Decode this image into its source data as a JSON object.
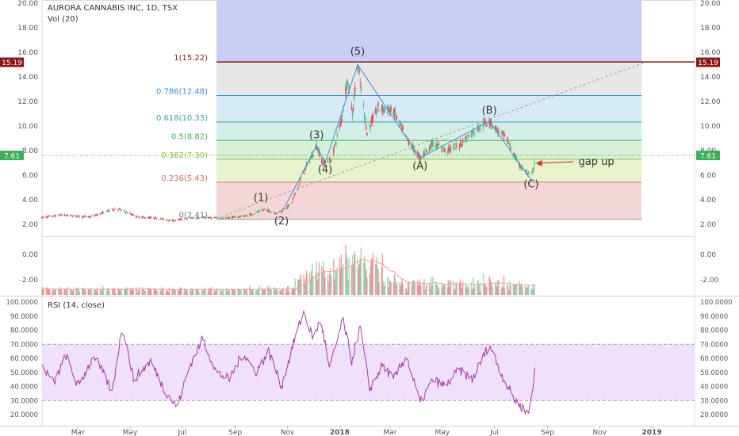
{
  "header": {
    "symbol_title": "AURORA CANNABIS INC, 1D, TSX",
    "volume_label": "Vol (20)",
    "rsi_label": "RSI (14, close)"
  },
  "colors": {
    "up": "#53b987",
    "down": "#eb4d5c",
    "rsi_line": "#a43ea6",
    "rsi_band": "#efe0fb",
    "fib_top_band": "#c9cdf3",
    "price_badge": "#3fae59",
    "high_badge": "#8c1515",
    "vol_ma": "#f1a593"
  },
  "chart_data": [
    {
      "type": "candlestick",
      "title": "AURORA CANNABIS INC, 1D, TSX",
      "y_ticks": [
        "20.00",
        "18.00",
        "16.00",
        "14.00",
        "12.00",
        "10.00",
        "8.00",
        "6.00",
        "4.00",
        "2.00"
      ],
      "ylim": [
        2,
        20
      ],
      "x_ticks": [
        "Mar",
        "May",
        "Jul",
        "Sep",
        "Nov",
        "2018",
        "Mar",
        "May",
        "Jul",
        "Sep",
        "Nov",
        "2019"
      ],
      "series": [
        {
          "name": "price",
          "anchors": [
            [
              "2017-01-18",
              2.55
            ],
            [
              "2017-02-10",
              2.75
            ],
            [
              "2017-03-15",
              2.6
            ],
            [
              "2017-04-15",
              3.3
            ],
            [
              "2017-05-10",
              2.6
            ],
            [
              "2017-06-01",
              2.5
            ],
            [
              "2017-06-20",
              2.3
            ],
            [
              "2017-07-15",
              2.55
            ],
            [
              "2017-08-20",
              2.5
            ],
            [
              "2017-09-15",
              2.7
            ],
            [
              "2017-10-05",
              3.2
            ],
            [
              "2017-10-20",
              2.9
            ],
            [
              "2017-11-05",
              3.6
            ],
            [
              "2017-11-20",
              6.2
            ],
            [
              "2017-12-05",
              8.4
            ],
            [
              "2017-12-12",
              7.0
            ],
            [
              "2017-12-22",
              7.2
            ],
            [
              "2018-01-03",
              10.5
            ],
            [
              "2018-01-10",
              13.9
            ],
            [
              "2018-01-16",
              11.0
            ],
            [
              "2018-01-22",
              15.0
            ],
            [
              "2018-02-02",
              9.5
            ],
            [
              "2018-02-15",
              11.5
            ],
            [
              "2018-03-05",
              11.2
            ],
            [
              "2018-03-20",
              9.0
            ],
            [
              "2018-04-05",
              7.4
            ],
            [
              "2018-04-20",
              8.6
            ],
            [
              "2018-05-05",
              8.0
            ],
            [
              "2018-05-20",
              8.4
            ],
            [
              "2018-06-10",
              9.8
            ],
            [
              "2018-06-25",
              10.4
            ],
            [
              "2018-07-05",
              9.6
            ],
            [
              "2018-07-15",
              9.0
            ],
            [
              "2018-07-28",
              7.0
            ],
            [
              "2018-08-05",
              6.4
            ],
            [
              "2018-08-13",
              5.9
            ],
            [
              "2018-08-17",
              6.9
            ],
            [
              "2018-08-18",
              7.61
            ]
          ]
        }
      ],
      "last_price": "7.61",
      "high_price": "15.19",
      "fib_levels": [
        {
          "ratio": "1",
          "value": 15.22,
          "label": "1(15.22)"
        },
        {
          "ratio": "0.786",
          "value": 12.48,
          "label": "0.786(12.48)"
        },
        {
          "ratio": "0.618",
          "value": 10.33,
          "label": "0.618(10.33)"
        },
        {
          "ratio": "0.5",
          "value": 8.82,
          "label": "0.5(8.82)"
        },
        {
          "ratio": "0.382",
          "value": 7.3,
          "label": "0.382(7.30)"
        },
        {
          "ratio": "0.236",
          "value": 5.43,
          "label": "0.236(5.43)"
        },
        {
          "ratio": "0",
          "value": 2.41,
          "label": "0(2.41)"
        }
      ],
      "wave_labels": [
        {
          "text": "(1)",
          "date": "2017-10-01",
          "price": 3.9
        },
        {
          "text": "(2)",
          "date": "2017-10-25",
          "price": 2.0
        },
        {
          "text": "(3)",
          "date": "2017-12-05",
          "price": 9.0
        },
        {
          "text": "(4)",
          "date": "2017-12-15",
          "price": 6.2
        },
        {
          "text": "(5)",
          "date": "2018-01-22",
          "price": 15.8
        },
        {
          "text": "(A)",
          "date": "2018-04-05",
          "price": 6.5
        },
        {
          "text": "(B)",
          "date": "2018-06-25",
          "price": 11.0
        },
        {
          "text": "(C)",
          "date": "2018-08-13",
          "price": 5.0
        }
      ],
      "annotations": [
        {
          "text": "gap up",
          "date": "2018-09-28",
          "price": 7.1
        }
      ],
      "trendline": {
        "from": [
          "2017-08-10",
          2.5
        ],
        "to": [
          "2018-12-25",
          15.2
        ]
      }
    },
    {
      "type": "bar",
      "title": "Vol (20)",
      "y_ticks": [
        "0.00",
        "-2.00"
      ]
    },
    {
      "type": "line",
      "title": "RSI (14, close)",
      "y_ticks": [
        "100.0000",
        "90.0000",
        "80.0000",
        "70.0000",
        "60.0000",
        "50.0000",
        "40.0000",
        "30.0000",
        "20.0000"
      ],
      "ylim": [
        15,
        100
      ],
      "band": [
        30,
        70
      ],
      "series": [
        {
          "name": "RSI",
          "anchors": [
            [
              "2017-01-18",
              55
            ],
            [
              "2017-02-01",
              42
            ],
            [
              "2017-02-15",
              62
            ],
            [
              "2017-03-01",
              40
            ],
            [
              "2017-03-20",
              62
            ],
            [
              "2017-04-10",
              36
            ],
            [
              "2017-04-22",
              84
            ],
            [
              "2017-05-05",
              45
            ],
            [
              "2017-05-25",
              58
            ],
            [
              "2017-06-10",
              38
            ],
            [
              "2017-06-25",
              25
            ],
            [
              "2017-07-10",
              55
            ],
            [
              "2017-07-25",
              74
            ],
            [
              "2017-08-10",
              50
            ],
            [
              "2017-08-25",
              45
            ],
            [
              "2017-09-10",
              64
            ],
            [
              "2017-09-25",
              50
            ],
            [
              "2017-10-10",
              65
            ],
            [
              "2017-10-25",
              40
            ],
            [
              "2017-11-10",
              75
            ],
            [
              "2017-11-20",
              93
            ],
            [
              "2017-12-01",
              74
            ],
            [
              "2017-12-10",
              88
            ],
            [
              "2017-12-20",
              52
            ],
            [
              "2018-01-05",
              88
            ],
            [
              "2018-01-15",
              58
            ],
            [
              "2018-01-25",
              82
            ],
            [
              "2018-02-05",
              38
            ],
            [
              "2018-02-20",
              55
            ],
            [
              "2018-03-05",
              45
            ],
            [
              "2018-03-20",
              62
            ],
            [
              "2018-04-05",
              28
            ],
            [
              "2018-04-20",
              45
            ],
            [
              "2018-05-05",
              40
            ],
            [
              "2018-05-20",
              52
            ],
            [
              "2018-06-05",
              45
            ],
            [
              "2018-06-25",
              70
            ],
            [
              "2018-07-10",
              48
            ],
            [
              "2018-07-25",
              30
            ],
            [
              "2018-08-10",
              21
            ],
            [
              "2018-08-16",
              45
            ],
            [
              "2018-08-18",
              56
            ]
          ]
        }
      ]
    }
  ]
}
